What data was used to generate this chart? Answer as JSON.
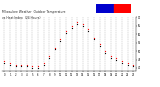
{
  "background_color": "#ffffff",
  "grid_color": "#999999",
  "x_hours": [
    0,
    1,
    2,
    3,
    4,
    5,
    6,
    7,
    8,
    9,
    10,
    11,
    12,
    13,
    14,
    15,
    16,
    17,
    18,
    19,
    20,
    21,
    22,
    23
  ],
  "temp_values": [
    44,
    43,
    42,
    42,
    42,
    41,
    41,
    43,
    47,
    52,
    57,
    62,
    65,
    67,
    66,
    63,
    58,
    54,
    50,
    47,
    46,
    44,
    43,
    42
  ],
  "heat_values": [
    43,
    42,
    41,
    41,
    41,
    40,
    40,
    42,
    46,
    51,
    56,
    61,
    64,
    66,
    65,
    62,
    57,
    53,
    49,
    46,
    45,
    43,
    42,
    41
  ],
  "outdoor_temp_color": "#ff0000",
  "heat_index_color": "#000000",
  "ylim_min": 38,
  "ylim_max": 70,
  "yticks": [
    40,
    45,
    50,
    55,
    60,
    65,
    70
  ],
  "legend_blue": "#0000cc",
  "legend_red": "#ff0000",
  "marker_size": 0.9,
  "title_text": "Milwaukee Weather Outdoor Temperature vs Heat Index (24 Hours)"
}
